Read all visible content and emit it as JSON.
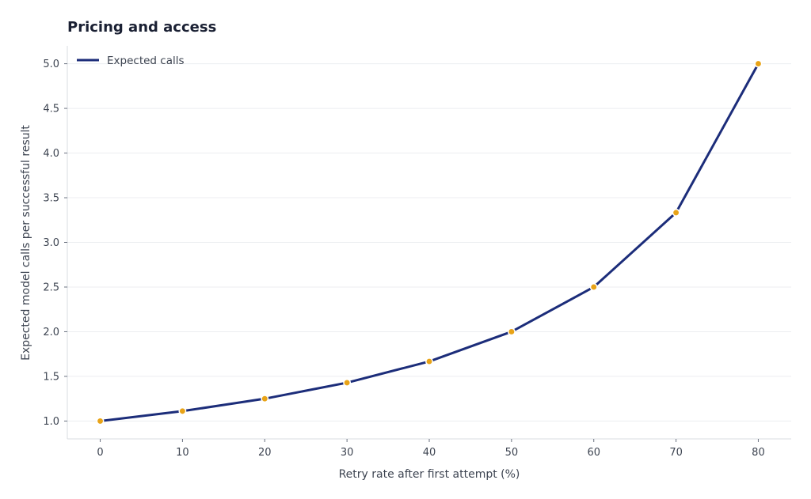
{
  "chart_data": {
    "type": "line",
    "title": "Pricing and access",
    "xlabel": "Retry rate after first attempt (%)",
    "ylabel": "Expected model calls per successful result",
    "x": [
      0,
      10,
      20,
      30,
      40,
      50,
      60,
      70,
      80
    ],
    "series": [
      {
        "name": "Expected calls",
        "values": [
          1.0,
          1.111,
          1.25,
          1.429,
          1.667,
          2.0,
          2.5,
          3.333,
          5.0
        ],
        "color": "#1c2d7a",
        "marker_color": "#e8a317"
      }
    ],
    "xticks": [
      0,
      10,
      20,
      30,
      40,
      50,
      60,
      70,
      80
    ],
    "yticks": [
      "1.0",
      "1.5",
      "2.0",
      "2.5",
      "3.0",
      "3.5",
      "4.0",
      "4.5",
      "5.0"
    ],
    "xlim": [
      -4,
      84
    ],
    "ylim": [
      0.8,
      5.2
    ],
    "grid": true,
    "legend_position": "top-left"
  }
}
